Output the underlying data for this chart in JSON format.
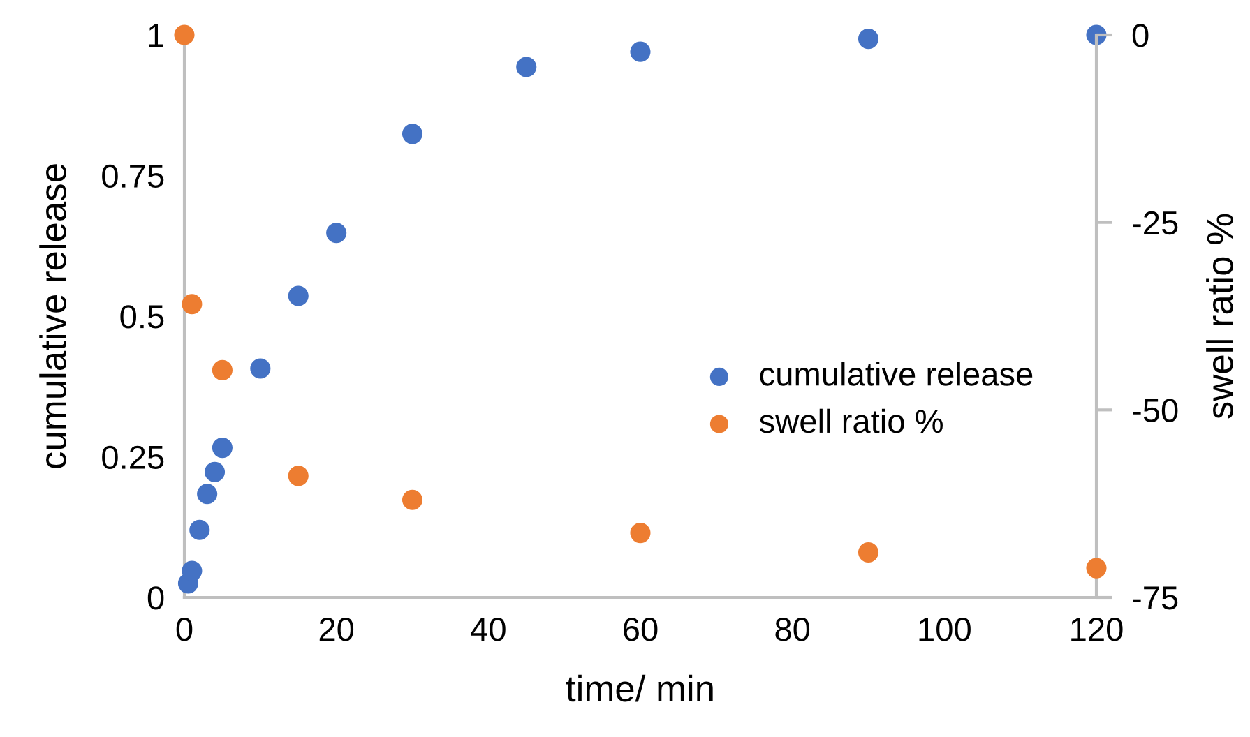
{
  "chart_data": {
    "type": "scatter",
    "xlabel": "time/ min",
    "ylabel": "cumulative release",
    "y2label": "swell ratio %",
    "xlim": [
      0,
      120
    ],
    "xticks": [
      0,
      20,
      40,
      60,
      80,
      100,
      120
    ],
    "ylim": [
      0,
      1
    ],
    "yticks": [
      0,
      0.25,
      0.5,
      0.75,
      1
    ],
    "y2lim": [
      -75,
      0
    ],
    "y2ticks": [
      -75,
      -50,
      -25,
      0
    ],
    "grid": false,
    "legend": "right",
    "marker": "circle",
    "series": [
      {
        "name": "cumulative release",
        "color": "#4472c4",
        "x": [
          0.5,
          1,
          2,
          3,
          4,
          5,
          10,
          15,
          20,
          30,
          45,
          60,
          90,
          120
        ],
        "values": [
          0.025,
          0.047,
          0.12,
          0.184,
          0.223,
          0.266,
          0.407,
          0.536,
          0.648,
          0.824,
          0.943,
          0.97,
          0.993,
          1
        ]
      },
      {
        "name": "swell ratio %",
        "color": "#ed7d31",
        "axis": "y2",
        "x": [
          0,
          1,
          5,
          15,
          30,
          60,
          90,
          120
        ],
        "values": [
          0,
          -35.9,
          -44.7,
          -58.8,
          -62.0,
          -66.4,
          -69.0,
          -71.1
        ]
      }
    ]
  }
}
